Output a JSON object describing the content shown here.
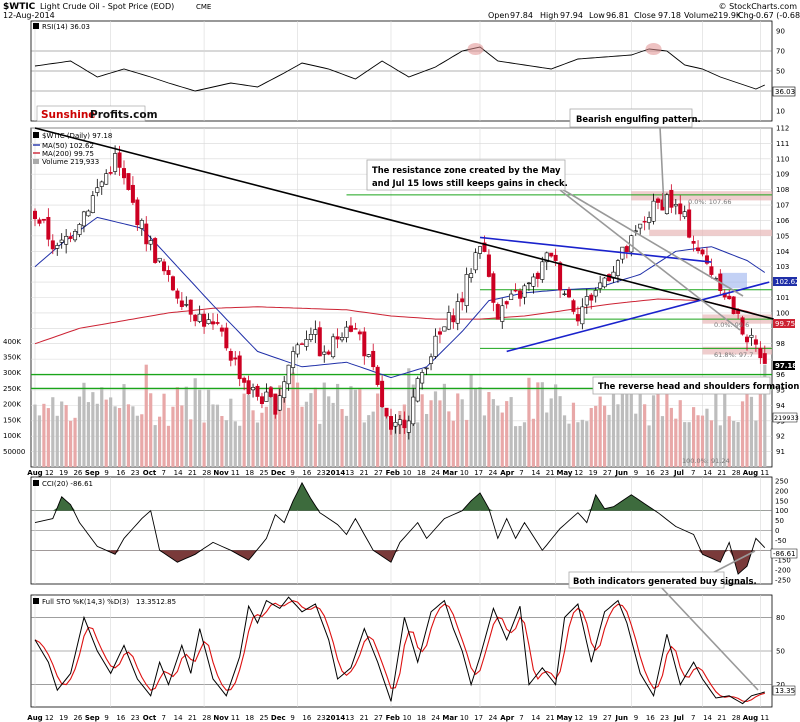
{
  "header": {
    "symbol": "$WTIC",
    "name": "Light Crude Oil - Spot Price (EOD)",
    "exchange": "CME",
    "date": "12-Aug-2014",
    "copyright": "© StockCharts.com",
    "quote": {
      "open_label": "Open",
      "open": "97.84",
      "high_label": "High",
      "high": "97.94",
      "low_label": "Low",
      "low": "96.81",
      "close_label": "Close",
      "close": "97.18",
      "volume_label": "Volume",
      "volume": "219.9K",
      "chg_label": "Chg",
      "chg": "-0.67 (-0.68%)"
    }
  },
  "rsi": {
    "label": "RSI(14) 36.03",
    "value": "36.03",
    "ticks": [
      "90",
      "70",
      "50",
      "30",
      "10"
    ]
  },
  "watermark": {
    "part1": "Sunshine",
    "part2": "Profits.com"
  },
  "price_panel": {
    "legend": {
      "title": "$WTIC (Daily) 97.18",
      "ma50": "MA(50) 102.62",
      "ma200": "MA(200) 99.75",
      "volume": "Volume 219,933"
    },
    "tags": {
      "ma50": "102.62",
      "ma200": "99.75",
      "close": "97.18",
      "volume": "219933"
    },
    "fib_labels": [
      "0.0%: 107.66",
      "0.0%: 99.6",
      "61.8%: 97.7",
      "100.0%: 91.24"
    ],
    "vol_ticks": [
      "400K",
      "350K",
      "300K",
      "250K",
      "200K",
      "150K",
      "100K",
      "50000"
    ]
  },
  "annotations": {
    "bearish": "Bearish engulfing pattern.",
    "resistance_line1": "The resistance zone created by the May",
    "resistance_line2": "and Jul 15 lows still keeps gains in check.",
    "hs": "The reverse head and shoulders formation?",
    "buy": "Both indicators generated buy signals."
  },
  "cci": {
    "label": "CCI(20) -86.61",
    "value": "-86.61",
    "ticks": [
      "250",
      "200",
      "150",
      "100",
      "50",
      "0",
      "-50",
      "-100",
      "-150",
      "-200",
      "-250"
    ]
  },
  "sto": {
    "label_prefix": "Full STO %K(14,3) %D(3)",
    "k": "13.35",
    "d": "12.85",
    "ticks": [
      "80",
      "50",
      "20"
    ]
  },
  "x_axis": {
    "labels": [
      "Aug",
      "12",
      "19",
      "26",
      "Sep",
      "9",
      "16",
      "23",
      "Oct",
      "7",
      "14",
      "21",
      "28",
      "Nov",
      "11",
      "18",
      "25",
      "Dec",
      "9",
      "16",
      "23",
      "2014",
      "13",
      "21",
      "27",
      "Feb",
      "10",
      "18",
      "24",
      "Mar",
      "10",
      "17",
      "24",
      "Apr",
      "7",
      "14",
      "21",
      "May",
      "12",
      "19",
      "27",
      "Jun",
      "9",
      "16",
      "23",
      "Jul",
      "7",
      "14",
      "21",
      "28",
      "Aug",
      "11"
    ]
  },
  "colors": {
    "up": "#ffffff",
    "down": "#cc0022",
    "ma50": "#1f2fa8",
    "ma200": "#cc2233",
    "fib": "#1aa51a",
    "zone": "#e8b8b8",
    "trend_black": "#000000",
    "trend_blue": "#1a22cc",
    "osc_pos": "#3d6b3d",
    "osc_neg": "#7a3a3a",
    "sto_d": "#dd1111"
  },
  "chart_data": {
    "type": "candlestick",
    "title": "$WTIC Light Crude Oil - Spot Price (EOD)",
    "y_range": [
      90,
      112
    ],
    "price_ticks": [
      91,
      92,
      93,
      94,
      95,
      96,
      97,
      98,
      99,
      100,
      101,
      102,
      103,
      104,
      105,
      106,
      107,
      108,
      109,
      110,
      111,
      112
    ],
    "control_points": [
      [
        0,
        106.5
      ],
      [
        5,
        104
      ],
      [
        12,
        107
      ],
      [
        18,
        110
      ],
      [
        24,
        105.5
      ],
      [
        30,
        102
      ],
      [
        36,
        100
      ],
      [
        42,
        98.5
      ],
      [
        48,
        95
      ],
      [
        54,
        94
      ],
      [
        58,
        97.5
      ],
      [
        62,
        99
      ],
      [
        65,
        97
      ],
      [
        70,
        99.5
      ],
      [
        73,
        98.5
      ],
      [
        76,
        96
      ],
      [
        80,
        92
      ],
      [
        84,
        93.5
      ],
      [
        88,
        97
      ],
      [
        92,
        99
      ],
      [
        96,
        101
      ],
      [
        100,
        104.8
      ],
      [
        104,
        100
      ],
      [
        108,
        101
      ],
      [
        112,
        102
      ],
      [
        116,
        104
      ],
      [
        118,
        102
      ],
      [
        122,
        100
      ],
      [
        126,
        101.5
      ],
      [
        130,
        103
      ],
      [
        134,
        104.5
      ],
      [
        138,
        106.5
      ],
      [
        142,
        107.5
      ],
      [
        146,
        106
      ],
      [
        150,
        103.5
      ],
      [
        154,
        102
      ],
      [
        158,
        99.5
      ],
      [
        161,
        98
      ],
      [
        164,
        97.18
      ]
    ],
    "ma50_points": [
      [
        0,
        103
      ],
      [
        6,
        104.5
      ],
      [
        14,
        106.2
      ],
      [
        24,
        105.5
      ],
      [
        32,
        103
      ],
      [
        40,
        100.5
      ],
      [
        50,
        97.5
      ],
      [
        60,
        96.5
      ],
      [
        70,
        96.8
      ],
      [
        80,
        95.8
      ],
      [
        88,
        96.5
      ],
      [
        96,
        98.8
      ],
      [
        102,
        100.8
      ],
      [
        110,
        101.3
      ],
      [
        118,
        101.5
      ],
      [
        126,
        101.6
      ],
      [
        136,
        102.5
      ],
      [
        144,
        104
      ],
      [
        152,
        104.3
      ],
      [
        160,
        103.4
      ],
      [
        164,
        102.62
      ]
    ],
    "ma200_points": [
      [
        0,
        98
      ],
      [
        10,
        99
      ],
      [
        20,
        99.5
      ],
      [
        30,
        100
      ],
      [
        40,
        100.3
      ],
      [
        50,
        100.4
      ],
      [
        60,
        100.3
      ],
      [
        70,
        100.2
      ],
      [
        80,
        99.8
      ],
      [
        90,
        99.6
      ],
      [
        100,
        99.6
      ],
      [
        110,
        99.8
      ],
      [
        120,
        100.2
      ],
      [
        130,
        100.6
      ],
      [
        140,
        100.9
      ],
      [
        150,
        100.8
      ],
      [
        160,
        100.1
      ],
      [
        164,
        99.75
      ]
    ],
    "fib_levels": [
      107.66,
      101.5,
      99.6,
      97.7,
      96.0,
      95.1
    ],
    "resistance_zones": [
      [
        107.3,
        107.9
      ],
      [
        105.0,
        105.4
      ],
      [
        99.3,
        99.9
      ],
      [
        97.3,
        97.8
      ]
    ],
    "trendlines": [
      {
        "color": "black",
        "from": [
          0,
          112
        ],
        "to": [
          166,
          99.6
        ]
      },
      {
        "color": "blue",
        "from": [
          100,
          104.9
        ],
        "to": [
          152,
          103.3
        ]
      },
      {
        "color": "blue",
        "from": [
          106,
          97.5
        ],
        "to": [
          165,
          102
        ]
      }
    ],
    "rsi_points": [
      [
        0,
        55
      ],
      [
        8,
        60
      ],
      [
        14,
        44
      ],
      [
        20,
        52
      ],
      [
        26,
        44
      ],
      [
        30,
        38
      ],
      [
        36,
        30
      ],
      [
        44,
        38
      ],
      [
        50,
        34
      ],
      [
        56,
        48
      ],
      [
        60,
        58
      ],
      [
        66,
        52
      ],
      [
        72,
        42
      ],
      [
        78,
        60
      ],
      [
        84,
        44
      ],
      [
        90,
        54
      ],
      [
        96,
        70
      ],
      [
        100,
        74
      ],
      [
        104,
        60
      ],
      [
        110,
        56
      ],
      [
        116,
        52
      ],
      [
        122,
        62
      ],
      [
        128,
        64
      ],
      [
        134,
        66
      ],
      [
        138,
        72
      ],
      [
        142,
        70
      ],
      [
        146,
        56
      ],
      [
        150,
        52
      ],
      [
        154,
        44
      ],
      [
        158,
        38
      ],
      [
        162,
        32
      ],
      [
        164,
        36
      ]
    ],
    "cci_points": [
      [
        0,
        40
      ],
      [
        4,
        60
      ],
      [
        6,
        170
      ],
      [
        8,
        130
      ],
      [
        10,
        40
      ],
      [
        14,
        -80
      ],
      [
        18,
        -120
      ],
      [
        20,
        -40
      ],
      [
        24,
        60
      ],
      [
        26,
        100
      ],
      [
        28,
        -100
      ],
      [
        32,
        -160
      ],
      [
        36,
        -120
      ],
      [
        40,
        -60
      ],
      [
        44,
        -100
      ],
      [
        48,
        -150
      ],
      [
        52,
        -40
      ],
      [
        54,
        80
      ],
      [
        56,
        40
      ],
      [
        58,
        150
      ],
      [
        60,
        240
      ],
      [
        62,
        160
      ],
      [
        64,
        90
      ],
      [
        68,
        30
      ],
      [
        70,
        -20
      ],
      [
        72,
        60
      ],
      [
        76,
        -100
      ],
      [
        80,
        -160
      ],
      [
        82,
        -60
      ],
      [
        86,
        40
      ],
      [
        88,
        -40
      ],
      [
        92,
        60
      ],
      [
        96,
        100
      ],
      [
        98,
        150
      ],
      [
        100,
        190
      ],
      [
        102,
        110
      ],
      [
        104,
        -40
      ],
      [
        106,
        60
      ],
      [
        108,
        -40
      ],
      [
        110,
        40
      ],
      [
        114,
        -100
      ],
      [
        118,
        10
      ],
      [
        122,
        90
      ],
      [
        124,
        40
      ],
      [
        126,
        180
      ],
      [
        128,
        110
      ],
      [
        130,
        120
      ],
      [
        134,
        180
      ],
      [
        136,
        150
      ],
      [
        140,
        90
      ],
      [
        144,
        20
      ],
      [
        148,
        -20
      ],
      [
        150,
        -120
      ],
      [
        154,
        -160
      ],
      [
        156,
        -60
      ],
      [
        158,
        -220
      ],
      [
        160,
        -180
      ],
      [
        162,
        -40
      ],
      [
        164,
        -86.61
      ]
    ],
    "sto_k_points": [
      [
        0,
        60
      ],
      [
        3,
        40
      ],
      [
        5,
        15
      ],
      [
        8,
        30
      ],
      [
        11,
        80
      ],
      [
        14,
        50
      ],
      [
        17,
        30
      ],
      [
        20,
        55
      ],
      [
        23,
        25
      ],
      [
        26,
        10
      ],
      [
        28,
        40
      ],
      [
        30,
        20
      ],
      [
        33,
        55
      ],
      [
        35,
        30
      ],
      [
        37,
        70
      ],
      [
        40,
        25
      ],
      [
        43,
        10
      ],
      [
        46,
        45
      ],
      [
        48,
        90
      ],
      [
        50,
        75
      ],
      [
        52,
        95
      ],
      [
        55,
        88
      ],
      [
        57,
        98
      ],
      [
        60,
        85
      ],
      [
        63,
        92
      ],
      [
        66,
        60
      ],
      [
        68,
        25
      ],
      [
        71,
        35
      ],
      [
        74,
        70
      ],
      [
        77,
        40
      ],
      [
        80,
        5
      ],
      [
        83,
        80
      ],
      [
        86,
        40
      ],
      [
        89,
        85
      ],
      [
        92,
        95
      ],
      [
        94,
        70
      ],
      [
        96,
        50
      ],
      [
        98,
        20
      ],
      [
        100,
        45
      ],
      [
        103,
        88
      ],
      [
        106,
        60
      ],
      [
        109,
        90
      ],
      [
        111,
        20
      ],
      [
        114,
        35
      ],
      [
        117,
        20
      ],
      [
        119,
        80
      ],
      [
        122,
        92
      ],
      [
        125,
        40
      ],
      [
        128,
        85
      ],
      [
        131,
        95
      ],
      [
        133,
        75
      ],
      [
        136,
        30
      ],
      [
        139,
        10
      ],
      [
        142,
        65
      ],
      [
        145,
        20
      ],
      [
        148,
        40
      ],
      [
        150,
        25
      ],
      [
        153,
        8
      ],
      [
        156,
        10
      ],
      [
        159,
        3
      ],
      [
        161,
        10
      ],
      [
        164,
        13.35
      ]
    ],
    "volume_ticks": [
      400,
      350,
      300,
      250,
      200,
      150,
      100,
      50
    ],
    "cci_ticks": [
      250,
      200,
      150,
      100,
      50,
      0,
      -50,
      -100,
      -150,
      -200,
      -250
    ],
    "rsi_ticks": [
      90,
      70,
      50,
      30,
      10
    ],
    "sto_ticks": [
      80,
      50,
      20
    ]
  }
}
